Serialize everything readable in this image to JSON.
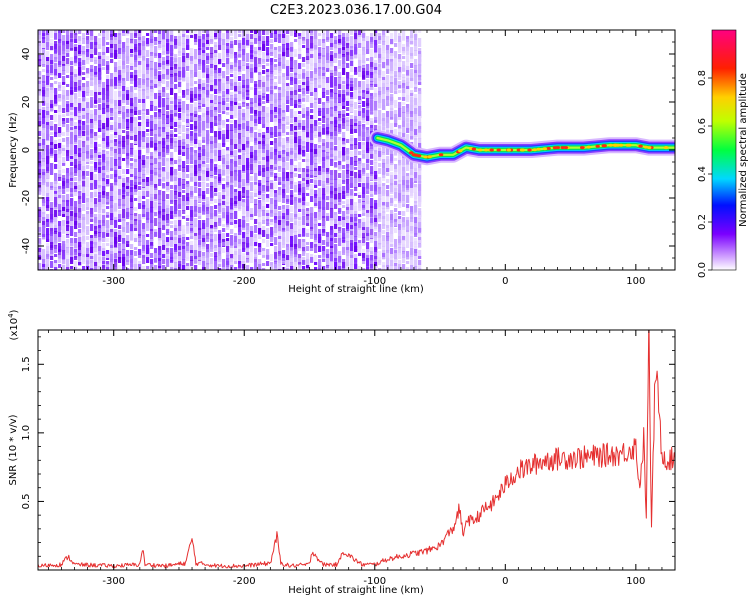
{
  "title": "C2E3.2023.036.17.00.G04",
  "colors": {
    "snr_line": "#e53030",
    "axes": "#000000"
  },
  "chart_data": [
    {
      "type": "heatmap",
      "title": "C2E3.2023.036.17.00.G04",
      "xlabel": "Height of straight line (km)",
      "ylabel": "Frequency (Hz)",
      "xlim": [
        -358,
        130
      ],
      "ylim": [
        -50,
        50
      ],
      "x_ticks": [
        -300,
        -200,
        -100,
        0,
        100
      ],
      "y_ticks": [
        -40,
        -20,
        0,
        20,
        40
      ],
      "noise_region_x": [
        -358,
        -65
      ],
      "signal_track": [
        {
          "x": -98,
          "y": 5
        },
        {
          "x": -90,
          "y": 4
        },
        {
          "x": -80,
          "y": 2
        },
        {
          "x": -70,
          "y": -2
        },
        {
          "x": -60,
          "y": -3
        },
        {
          "x": -50,
          "y": -2
        },
        {
          "x": -40,
          "y": -2
        },
        {
          "x": -30,
          "y": 1
        },
        {
          "x": -20,
          "y": 0
        },
        {
          "x": -10,
          "y": 0
        },
        {
          "x": 0,
          "y": 0
        },
        {
          "x": 20,
          "y": 0
        },
        {
          "x": 40,
          "y": 1
        },
        {
          "x": 60,
          "y": 1
        },
        {
          "x": 80,
          "y": 2
        },
        {
          "x": 100,
          "y": 2
        },
        {
          "x": 110,
          "y": 1
        },
        {
          "x": 120,
          "y": 1
        },
        {
          "x": 130,
          "y": 1
        }
      ],
      "colorbar": {
        "label": "Normalized spectral amplitude",
        "range": [
          0,
          1
        ],
        "ticks": [
          "0.0",
          "0.2",
          "0.4",
          "0.6",
          "0.8"
        ],
        "colormap": "rainbow (white→violet→blue→cyan→green→yellow→red→magenta)"
      }
    },
    {
      "type": "line",
      "xlabel": "Height of straight line (km)",
      "ylabel": "SNR (10 * v/v)",
      "exponent_label": "(x10",
      "exponent_power": "4",
      "exponent_close": ")",
      "xlim": [
        -358,
        130
      ],
      "ylim": [
        0,
        1.75
      ],
      "x_ticks": [
        -300,
        -200,
        -100,
        0,
        100
      ],
      "y_ticks": [
        "0.5",
        "1.0",
        "1.5"
      ],
      "y_tick_values": [
        0.5,
        1.0,
        1.5
      ],
      "series": [
        {
          "x": [
            -358,
            -340,
            -335,
            -330,
            -300,
            -280,
            -278,
            -276,
            -260,
            -245,
            -240,
            -237,
            -220,
            -200,
            -180,
            -175,
            -172,
            -165,
            -150,
            -148,
            -140,
            -128,
            -125,
            -110,
            -100,
            -90,
            -80,
            -70,
            -60,
            -50,
            -45,
            -40,
            -35,
            -32,
            -30,
            -25,
            -20,
            -15,
            -10,
            -5,
            0,
            5,
            10,
            20,
            30,
            40,
            50,
            60,
            70,
            80,
            90,
            95,
            100,
            103,
            106,
            108,
            110,
            112,
            115,
            120,
            125,
            130
          ],
          "y": [
            0.03,
            0.04,
            0.1,
            0.04,
            0.03,
            0.04,
            0.16,
            0.04,
            0.03,
            0.05,
            0.23,
            0.05,
            0.03,
            0.03,
            0.05,
            0.25,
            0.05,
            0.03,
            0.04,
            0.14,
            0.04,
            0.04,
            0.14,
            0.04,
            0.04,
            0.08,
            0.1,
            0.12,
            0.14,
            0.18,
            0.25,
            0.3,
            0.45,
            0.22,
            0.38,
            0.35,
            0.4,
            0.45,
            0.48,
            0.55,
            0.62,
            0.68,
            0.72,
            0.76,
            0.8,
            0.81,
            0.82,
            0.82,
            0.83,
            0.84,
            0.85,
            0.88,
            0.9,
            0.6,
            0.95,
            0.4,
            1.75,
            0.3,
            1.5,
            0.85,
            0.8,
            0.82
          ]
        }
      ]
    }
  ]
}
